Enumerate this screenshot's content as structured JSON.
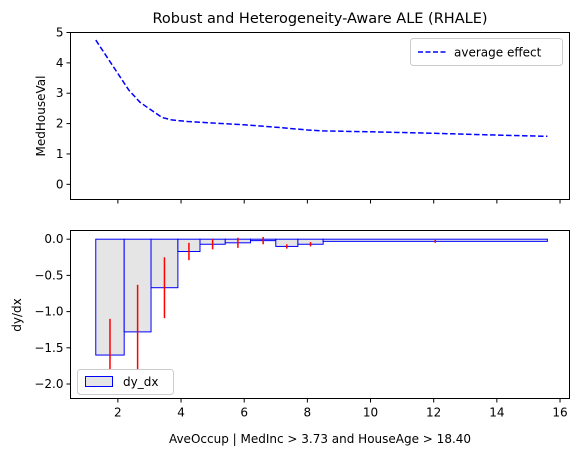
{
  "chart_data": [
    {
      "type": "line",
      "title": "Robust and Heterogeneity-Aware ALE (RHALE)",
      "xlabel": "",
      "ylabel": "MedHouseVal",
      "xlim": [
        0.5,
        16.3
      ],
      "ylim": [
        -0.5,
        5
      ],
      "yticks": [
        0,
        1,
        2,
        3,
        4,
        5
      ],
      "xticks": [
        2,
        4,
        6,
        8,
        10,
        12,
        14,
        16
      ],
      "x_tick_labels_shown": false,
      "legend": "top-right",
      "grid": false,
      "series": [
        {
          "name": "average effect",
          "color": "#0000ff",
          "style": "dashed",
          "x": [
            1.3,
            1.65,
            2.35,
            2.7,
            3.05,
            3.4,
            3.7,
            4.2,
            5.0,
            6.0,
            7.0,
            8.0,
            8.5,
            10.0,
            12.0,
            14.0,
            15.6
          ],
          "y": [
            4.75,
            4.2,
            3.1,
            2.7,
            2.45,
            2.2,
            2.12,
            2.07,
            2.02,
            1.96,
            1.88,
            1.79,
            1.76,
            1.73,
            1.68,
            1.62,
            1.58
          ]
        }
      ]
    },
    {
      "type": "bar",
      "title": "",
      "xlabel": "AveOccup | MedInc > 3.73 and HouseAge > 18.40",
      "ylabel": "dy/dx",
      "xlim": [
        0.5,
        16.3
      ],
      "ylim": [
        -2.2,
        0.12
      ],
      "yticks": [
        0.0,
        -0.5,
        -1.0,
        -1.5,
        -2.0
      ],
      "ytick_labels": [
        "0.0",
        "−0.5",
        "−1.0",
        "−1.5",
        "−2.0"
      ],
      "xticks": [
        2,
        4,
        6,
        8,
        10,
        12,
        14,
        16
      ],
      "legend": "bottom-left",
      "grid": false,
      "bar_fill": "#e5e5e5",
      "bar_edge": "#0000ff",
      "error_color": "#ff0000",
      "series": [
        {
          "name": "dy_dx",
          "bins": [
            {
              "x0": 1.3,
              "x1": 2.2,
              "value": -1.6,
              "err": 0.5
            },
            {
              "x0": 2.2,
              "x1": 3.05,
              "value": -1.28,
              "err": 0.65
            },
            {
              "x0": 3.05,
              "x1": 3.9,
              "value": -0.67,
              "err": 0.42
            },
            {
              "x0": 3.9,
              "x1": 4.6,
              "value": -0.17,
              "err": 0.12
            },
            {
              "x0": 4.6,
              "x1": 5.4,
              "value": -0.07,
              "err": 0.07
            },
            {
              "x0": 5.4,
              "x1": 6.2,
              "value": -0.05,
              "err": 0.07
            },
            {
              "x0": 6.2,
              "x1": 7.0,
              "value": -0.02,
              "err": 0.05
            },
            {
              "x0": 7.0,
              "x1": 7.7,
              "value": -0.1,
              "err": 0.03
            },
            {
              "x0": 7.7,
              "x1": 8.5,
              "value": -0.07,
              "err": 0.03
            },
            {
              "x0": 8.5,
              "x1": 15.6,
              "value": -0.03,
              "err": 0.02
            }
          ]
        }
      ]
    }
  ]
}
